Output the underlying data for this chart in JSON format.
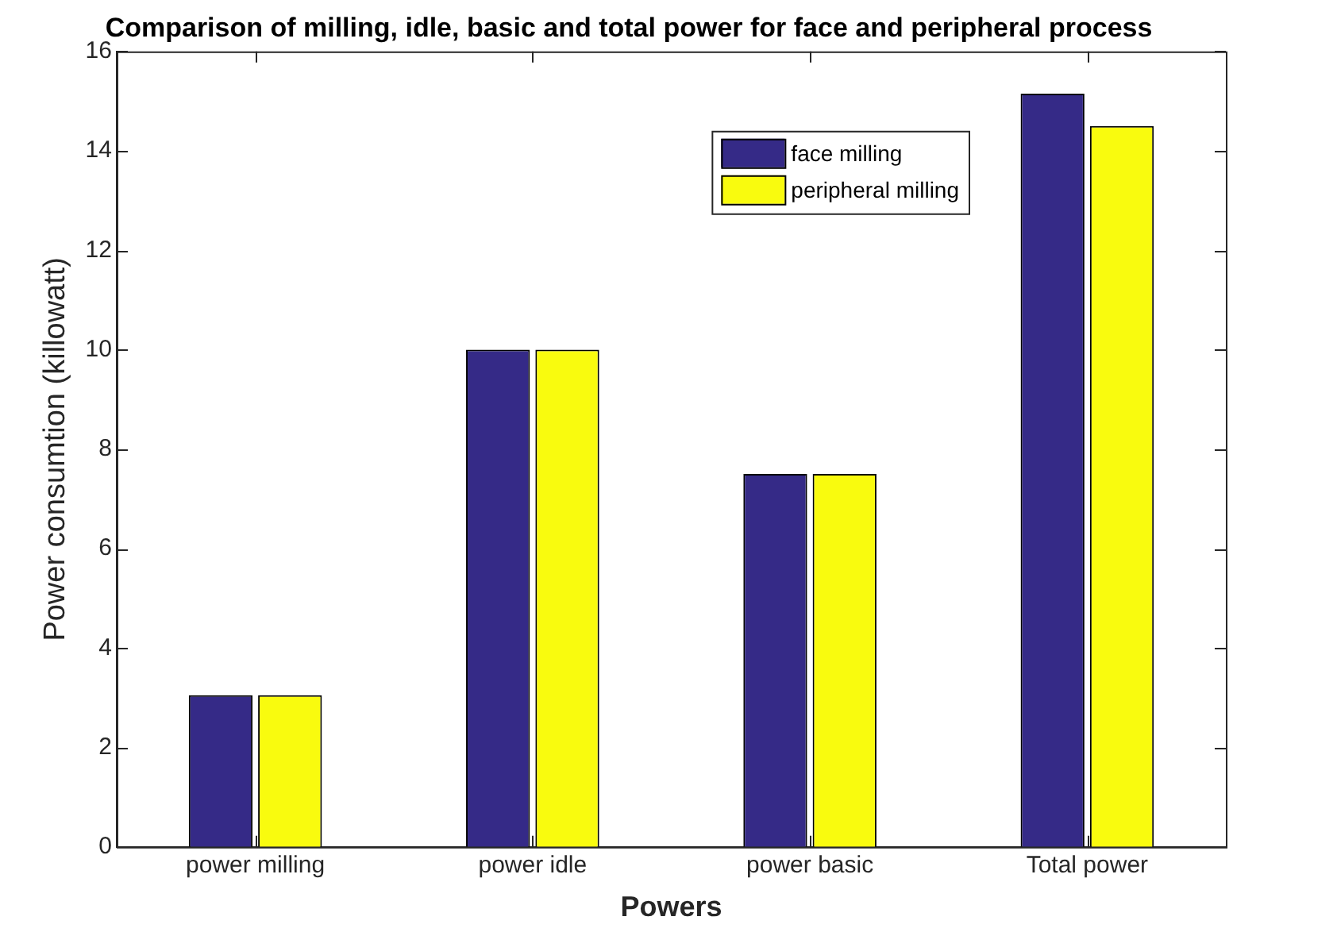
{
  "chart_data": {
    "type": "bar",
    "title": "Comparison of milling, idle, basic and total power for face and peripheral process",
    "xlabel": "Powers",
    "ylabel": "Power consumtion (killowatt)",
    "categories": [
      "power milling",
      "power idle",
      "power basic",
      "Total power"
    ],
    "series": [
      {
        "name": "face milling",
        "color": "#352a87",
        "values": [
          3.05,
          10,
          7.5,
          15.15
        ]
      },
      {
        "name": "peripheral milling",
        "color": "#f9fb0e",
        "values": [
          3.05,
          10,
          7.5,
          14.5
        ]
      }
    ],
    "ylim": [
      0,
      16
    ],
    "yticks": [
      0,
      2,
      4,
      6,
      8,
      10,
      12,
      14,
      16
    ],
    "grid": false,
    "legend": "top right"
  }
}
